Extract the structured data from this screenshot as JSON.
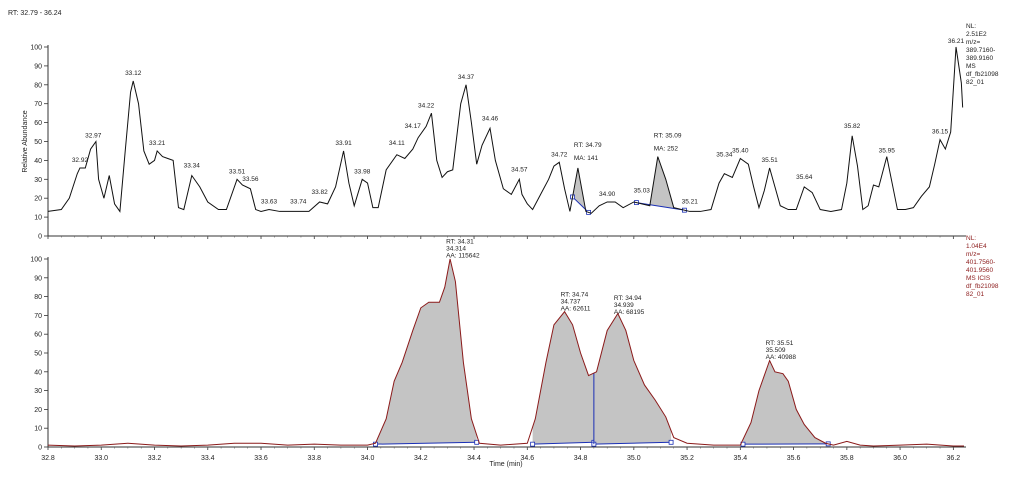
{
  "header": {
    "rt_range": "RT: 32.79 - 36.24"
  },
  "colors": {
    "top_trace": "#111111",
    "bottom_trace": "#8b1a1a",
    "peak_fill": "#c4c4c4",
    "baseline": "#1a2fb5",
    "bottom_info": "#8b1a1a",
    "top_info": "#222222"
  },
  "chart_data": [
    {
      "type": "line",
      "title": "",
      "xlabel": "",
      "ylabel": "Relative Abundance",
      "xlim": [
        32.8,
        36.24
      ],
      "ylim": [
        0,
        100
      ],
      "yticks": [
        "0",
        "10",
        "20",
        "30",
        "40",
        "50",
        "60",
        "70",
        "80",
        "90",
        "100"
      ],
      "info": [
        "NL:",
        "2.51E2",
        "m/z=",
        "389.7160-",
        "389.9160",
        "MS",
        "df_fb21098",
        "82_01"
      ],
      "points": [
        [
          32.8,
          13
        ],
        [
          32.85,
          14
        ],
        [
          32.88,
          20
        ],
        [
          32.91,
          33
        ],
        [
          32.92,
          36
        ],
        [
          32.94,
          36
        ],
        [
          32.96,
          46
        ],
        [
          32.97,
          48
        ],
        [
          32.98,
          50
        ],
        [
          32.99,
          30
        ],
        [
          33.01,
          20
        ],
        [
          33.03,
          32
        ],
        [
          33.05,
          17
        ],
        [
          33.07,
          13
        ],
        [
          33.09,
          45
        ],
        [
          33.11,
          76
        ],
        [
          33.12,
          82
        ],
        [
          33.14,
          70
        ],
        [
          33.16,
          45
        ],
        [
          33.18,
          38
        ],
        [
          33.2,
          40
        ],
        [
          33.21,
          45
        ],
        [
          33.23,
          42
        ],
        [
          33.25,
          41
        ],
        [
          33.27,
          40
        ],
        [
          33.29,
          15
        ],
        [
          33.31,
          14
        ],
        [
          33.34,
          32
        ],
        [
          33.37,
          26
        ],
        [
          33.4,
          18
        ],
        [
          33.44,
          14
        ],
        [
          33.47,
          14
        ],
        [
          33.51,
          30
        ],
        [
          33.53,
          27
        ],
        [
          33.56,
          25
        ],
        [
          33.58,
          14
        ],
        [
          33.6,
          13
        ],
        [
          33.63,
          14
        ],
        [
          33.67,
          13
        ],
        [
          33.74,
          13
        ],
        [
          33.78,
          13
        ],
        [
          33.82,
          18
        ],
        [
          33.85,
          17
        ],
        [
          33.88,
          26
        ],
        [
          33.91,
          45
        ],
        [
          33.93,
          28
        ],
        [
          33.95,
          16
        ],
        [
          33.98,
          30
        ],
        [
          34.0,
          28
        ],
        [
          34.02,
          15
        ],
        [
          34.04,
          15
        ],
        [
          34.07,
          35
        ],
        [
          34.11,
          43
        ],
        [
          34.14,
          41
        ],
        [
          34.17,
          46
        ],
        [
          34.19,
          52
        ],
        [
          34.22,
          58
        ],
        [
          34.24,
          65
        ],
        [
          34.26,
          40
        ],
        [
          34.28,
          31
        ],
        [
          34.3,
          34
        ],
        [
          34.32,
          35
        ],
        [
          34.35,
          70
        ],
        [
          34.37,
          80
        ],
        [
          34.39,
          60
        ],
        [
          34.41,
          38
        ],
        [
          34.43,
          48
        ],
        [
          34.46,
          57
        ],
        [
          34.48,
          40
        ],
        [
          34.51,
          25
        ],
        [
          34.54,
          22
        ],
        [
          34.57,
          30
        ],
        [
          34.58,
          22
        ],
        [
          34.6,
          17
        ],
        [
          34.62,
          14
        ],
        [
          34.65,
          22
        ],
        [
          34.68,
          30
        ],
        [
          34.7,
          37
        ],
        [
          34.72,
          39
        ],
        [
          34.74,
          25
        ],
        [
          34.76,
          13
        ],
        [
          34.79,
          36
        ],
        [
          34.82,
          13
        ],
        [
          34.84,
          12
        ],
        [
          34.87,
          16
        ],
        [
          34.9,
          18
        ],
        [
          34.93,
          18
        ],
        [
          34.96,
          15
        ],
        [
          35.0,
          18
        ],
        [
          35.03,
          17
        ],
        [
          35.06,
          16
        ],
        [
          35.09,
          42
        ],
        [
          35.12,
          30
        ],
        [
          35.15,
          15
        ],
        [
          35.21,
          13
        ],
        [
          35.25,
          13
        ],
        [
          35.29,
          14
        ],
        [
          35.32,
          28
        ],
        [
          35.34,
          33
        ],
        [
          35.37,
          31
        ],
        [
          35.4,
          41
        ],
        [
          35.43,
          38
        ],
        [
          35.45,
          26
        ],
        [
          35.47,
          15
        ],
        [
          35.49,
          24
        ],
        [
          35.51,
          36
        ],
        [
          35.53,
          26
        ],
        [
          35.55,
          16
        ],
        [
          35.58,
          14
        ],
        [
          35.61,
          14
        ],
        [
          35.64,
          26
        ],
        [
          35.67,
          23
        ],
        [
          35.7,
          14
        ],
        [
          35.74,
          13
        ],
        [
          35.78,
          14
        ],
        [
          35.8,
          28
        ],
        [
          35.82,
          53
        ],
        [
          35.84,
          37
        ],
        [
          35.86,
          14
        ],
        [
          35.88,
          16
        ],
        [
          35.9,
          27
        ],
        [
          35.92,
          26
        ],
        [
          35.95,
          42
        ],
        [
          35.97,
          28
        ],
        [
          35.99,
          14
        ],
        [
          36.02,
          14
        ],
        [
          36.05,
          15
        ],
        [
          36.08,
          21
        ],
        [
          36.11,
          26
        ],
        [
          36.13,
          38
        ],
        [
          36.15,
          51
        ],
        [
          36.17,
          46
        ],
        [
          36.19,
          55
        ],
        [
          36.21,
          100
        ],
        [
          36.23,
          81
        ],
        [
          36.235,
          68
        ]
      ],
      "peak_labels": [
        "32.92",
        "32.97",
        "33.12",
        "33.21",
        "33.34",
        "33.51",
        "33.56",
        "33.63",
        "33.74",
        "33.82",
        "33.91",
        "33.98",
        "34.11",
        "34.17",
        "34.22",
        "34.37",
        "34.46",
        "34.57",
        "34.72",
        "34.90",
        "35.03",
        "35.21",
        "35.34",
        "35.40",
        "35.51",
        "35.64",
        "35.82",
        "35.95",
        "36.15"
      ],
      "peak_label_y": [
        37,
        50,
        83,
        46,
        34,
        31,
        27,
        15,
        15,
        20,
        46,
        31,
        46,
        55,
        66,
        81,
        59,
        32,
        40,
        19,
        21,
        15,
        40,
        42,
        37,
        28,
        55,
        42,
        52
      ],
      "apex": {
        "label": "36.21",
        "x": 36.21,
        "y": 100
      },
      "integrated_peaks": [
        {
          "start": 34.77,
          "end": 34.83,
          "rt": "RT: 34.79",
          "ma": "MA: 141",
          "label_x": 34.79,
          "label_y": 47
        },
        {
          "start": 35.01,
          "end": 35.19,
          "rt": "RT: 35.09",
          "ma": "MA: 252",
          "label_x": 35.09,
          "label_y": 52
        }
      ]
    },
    {
      "type": "line",
      "title": "",
      "xlabel": "Time (min)",
      "ylabel": "",
      "xlim": [
        32.8,
        36.24
      ],
      "ylim": [
        0,
        100
      ],
      "yticks": [
        "0",
        "10",
        "20",
        "30",
        "40",
        "50",
        "60",
        "70",
        "80",
        "90",
        "100"
      ],
      "xticks": [
        "32.8",
        "33.0",
        "33.2",
        "33.4",
        "33.6",
        "33.8",
        "34.0",
        "34.2",
        "34.4",
        "34.6",
        "34.8",
        "35.0",
        "35.2",
        "35.4",
        "35.6",
        "35.8",
        "36.0",
        "36.2"
      ],
      "info": [
        "NL:",
        "1.04E4",
        "m/z=",
        "401.7560-",
        "401.9560",
        "MS  ICIS",
        "df_fb21098",
        "82_01"
      ],
      "points": [
        [
          32.8,
          1
        ],
        [
          32.9,
          0.5
        ],
        [
          33.0,
          1
        ],
        [
          33.1,
          2
        ],
        [
          33.2,
          1
        ],
        [
          33.3,
          0.5
        ],
        [
          33.4,
          1
        ],
        [
          33.5,
          2
        ],
        [
          33.6,
          2
        ],
        [
          33.7,
          1
        ],
        [
          33.8,
          1.5
        ],
        [
          33.9,
          1
        ],
        [
          34.0,
          1
        ],
        [
          34.03,
          2
        ],
        [
          34.07,
          15
        ],
        [
          34.1,
          35
        ],
        [
          34.13,
          45
        ],
        [
          34.17,
          62
        ],
        [
          34.2,
          74
        ],
        [
          34.23,
          77
        ],
        [
          34.27,
          77
        ],
        [
          34.29,
          85
        ],
        [
          34.31,
          100
        ],
        [
          34.33,
          88
        ],
        [
          34.36,
          45
        ],
        [
          34.39,
          15
        ],
        [
          34.42,
          2
        ],
        [
          34.5,
          1
        ],
        [
          34.6,
          2
        ],
        [
          34.63,
          15
        ],
        [
          34.67,
          45
        ],
        [
          34.7,
          65
        ],
        [
          34.74,
          72
        ],
        [
          34.77,
          65
        ],
        [
          34.8,
          50
        ],
        [
          34.83,
          38
        ],
        [
          34.86,
          40
        ],
        [
          34.9,
          62
        ],
        [
          34.94,
          71
        ],
        [
          34.97,
          62
        ],
        [
          35.0,
          46
        ],
        [
          35.04,
          33
        ],
        [
          35.08,
          25
        ],
        [
          35.12,
          16
        ],
        [
          35.15,
          5
        ],
        [
          35.2,
          2
        ],
        [
          35.3,
          1
        ],
        [
          35.4,
          1
        ],
        [
          35.44,
          13
        ],
        [
          35.47,
          30
        ],
        [
          35.51,
          46
        ],
        [
          35.53,
          40
        ],
        [
          35.56,
          39
        ],
        [
          35.58,
          35
        ],
        [
          35.61,
          20
        ],
        [
          35.64,
          12
        ],
        [
          35.68,
          5
        ],
        [
          35.72,
          2
        ],
        [
          35.75,
          1
        ],
        [
          35.8,
          3
        ],
        [
          35.85,
          1
        ],
        [
          35.9,
          0.5
        ],
        [
          36.0,
          1
        ],
        [
          36.1,
          1.5
        ],
        [
          36.2,
          0.5
        ],
        [
          36.24,
          0.5
        ]
      ],
      "integrated_peaks": [
        {
          "start": 34.03,
          "end": 34.41,
          "rt": "RT: 34.31",
          "rt_exact": "34.314",
          "area": "AA: 115642",
          "label_x": 34.31,
          "label_y": 106
        },
        {
          "start": 34.62,
          "end": 34.85,
          "rt": "RT: 34.74",
          "rt_exact": "34.737",
          "area": "AA: 62611",
          "label_x": 34.74,
          "label_y": 78
        },
        {
          "start": 34.85,
          "end": 35.14,
          "rt": "RT: 34.94",
          "rt_exact": "34.939",
          "area": "AA: 68195",
          "label_x": 34.94,
          "label_y": 76
        },
        {
          "start": 35.41,
          "end": 35.73,
          "rt": "RT: 35.51",
          "rt_exact": "35.509",
          "area": "AA: 40988",
          "label_x": 35.51,
          "label_y": 52
        }
      ]
    }
  ]
}
